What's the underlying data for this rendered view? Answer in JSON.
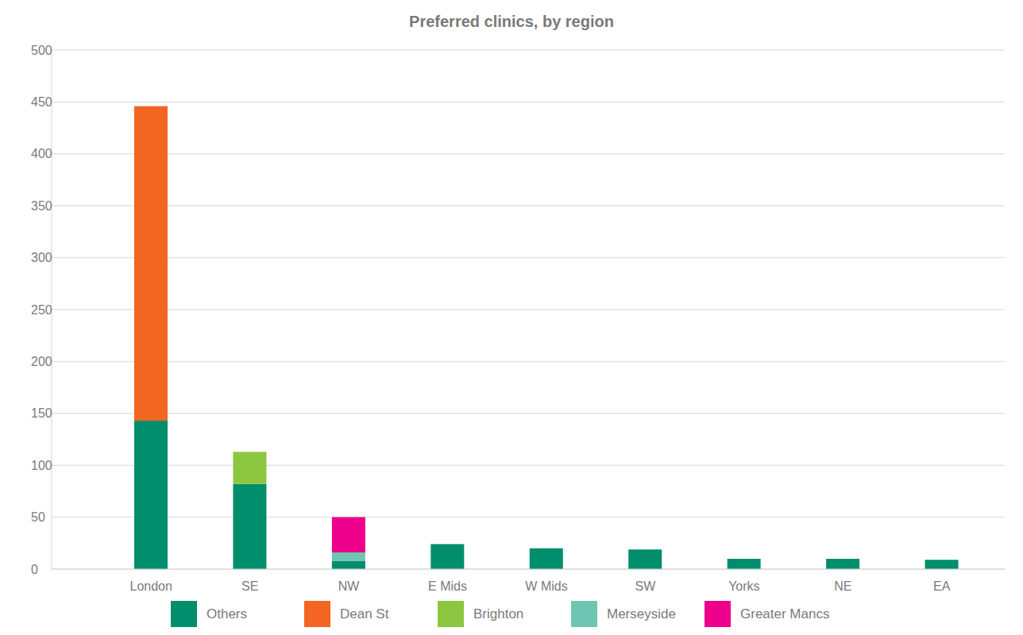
{
  "chart_data": {
    "type": "bar",
    "title": "Preferred clinics, by region",
    "categories": [
      "London",
      "SE",
      "NW",
      "E Mids",
      "W Mids",
      "SW",
      "Yorks",
      "NE",
      "EA"
    ],
    "series": [
      {
        "name": "Others",
        "color": "#008e6d",
        "values": [
          143,
          82,
          8,
          24,
          20,
          19,
          10,
          10,
          9
        ]
      },
      {
        "name": "Dean St",
        "color": "#f26522",
        "values": [
          303,
          0,
          0,
          0,
          0,
          0,
          0,
          0,
          0
        ]
      },
      {
        "name": "Brighton",
        "color": "#8dc641",
        "values": [
          0,
          31,
          0,
          0,
          0,
          0,
          0,
          0,
          0
        ]
      },
      {
        "name": "Merseyside",
        "color": "#6ec6b2",
        "values": [
          0,
          0,
          8,
          0,
          0,
          0,
          0,
          0,
          0
        ]
      },
      {
        "name": "Greater Mancs",
        "color": "#ec008c",
        "values": [
          0,
          0,
          34,
          0,
          0,
          0,
          0,
          0,
          0
        ]
      }
    ],
    "ylim": [
      0,
      500
    ],
    "yticks": [
      0,
      50,
      100,
      150,
      200,
      250,
      300,
      350,
      400,
      450,
      500
    ],
    "grid": true,
    "stacked": true,
    "legend": "bottom"
  }
}
